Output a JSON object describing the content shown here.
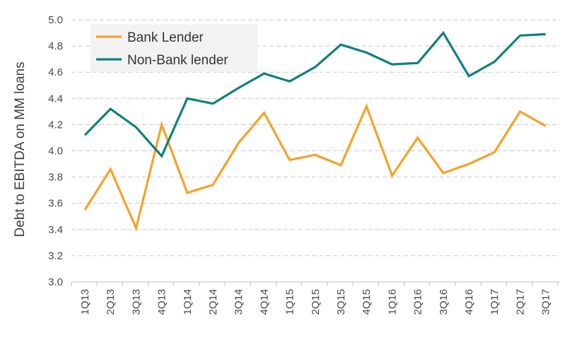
{
  "chart_data": {
    "type": "line",
    "title": "",
    "xlabel": "",
    "ylabel": "Debt to EBITDA on MM loans",
    "categories": [
      "1Q13",
      "2Q13",
      "3Q13",
      "4Q13",
      "1Q14",
      "2Q14",
      "3Q14",
      "4Q14",
      "1Q15",
      "2Q15",
      "3Q15",
      "4Q15",
      "1Q16",
      "2Q16",
      "3Q16",
      "4Q16",
      "1Q17",
      "2Q17",
      "3Q17"
    ],
    "ylim": [
      3.0,
      5.0
    ],
    "yticks": [
      "3.0",
      "3.2",
      "3.4",
      "3.6",
      "3.8",
      "4.0",
      "4.2",
      "4.4",
      "4.6",
      "4.8",
      "5.0"
    ],
    "grid": "horizontal dashed",
    "legend_position": "top-left",
    "series": [
      {
        "name": "Bank Lender",
        "color": "#F7A12A",
        "values": [
          3.55,
          3.86,
          3.41,
          4.2,
          3.68,
          3.74,
          4.06,
          4.29,
          3.93,
          3.97,
          3.89,
          4.34,
          3.81,
          4.1,
          3.83,
          3.9,
          3.99,
          4.3,
          4.19
        ]
      },
      {
        "name": "Non-Bank lender",
        "color": "#10807C",
        "values": [
          4.12,
          4.32,
          4.18,
          3.96,
          4.4,
          4.36,
          4.48,
          4.59,
          4.53,
          4.64,
          4.81,
          4.75,
          4.66,
          4.67,
          4.9,
          4.57,
          4.68,
          4.88,
          4.89
        ]
      }
    ]
  }
}
